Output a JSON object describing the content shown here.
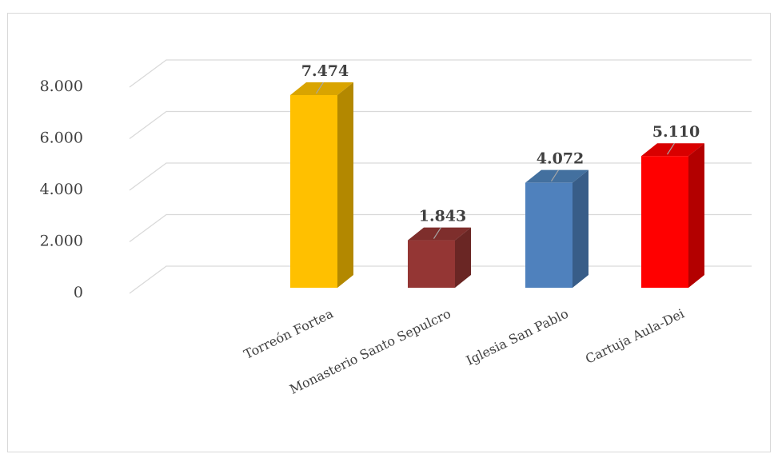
{
  "chart_data": {
    "type": "bar",
    "style": "3d-column",
    "categories": [
      "Torreón Fortea",
      "Monasterio Santo Sepulcro",
      "Iglesia San Pablo",
      "Cartuja Aula-Dei"
    ],
    "values": [
      7474,
      1843,
      4072,
      5110
    ],
    "data_labels": [
      "7.474",
      "1.843",
      "4.072",
      "5.110"
    ],
    "y_ticks": [
      "0",
      "2.000",
      "4.000",
      "6.000",
      "8.000"
    ],
    "ylim": [
      0,
      8000
    ],
    "grid": true,
    "legend": "none",
    "title": "",
    "xlabel": "",
    "ylabel": "",
    "colors": {
      "front": [
        "#ffc000",
        "#943634",
        "#4f81bd",
        "#ff0000"
      ],
      "side": [
        "#b38800",
        "#6a2624",
        "#385d88",
        "#b30000"
      ],
      "top": [
        "#d9a400",
        "#7e2e2c",
        "#43709f",
        "#d90000"
      ]
    }
  }
}
